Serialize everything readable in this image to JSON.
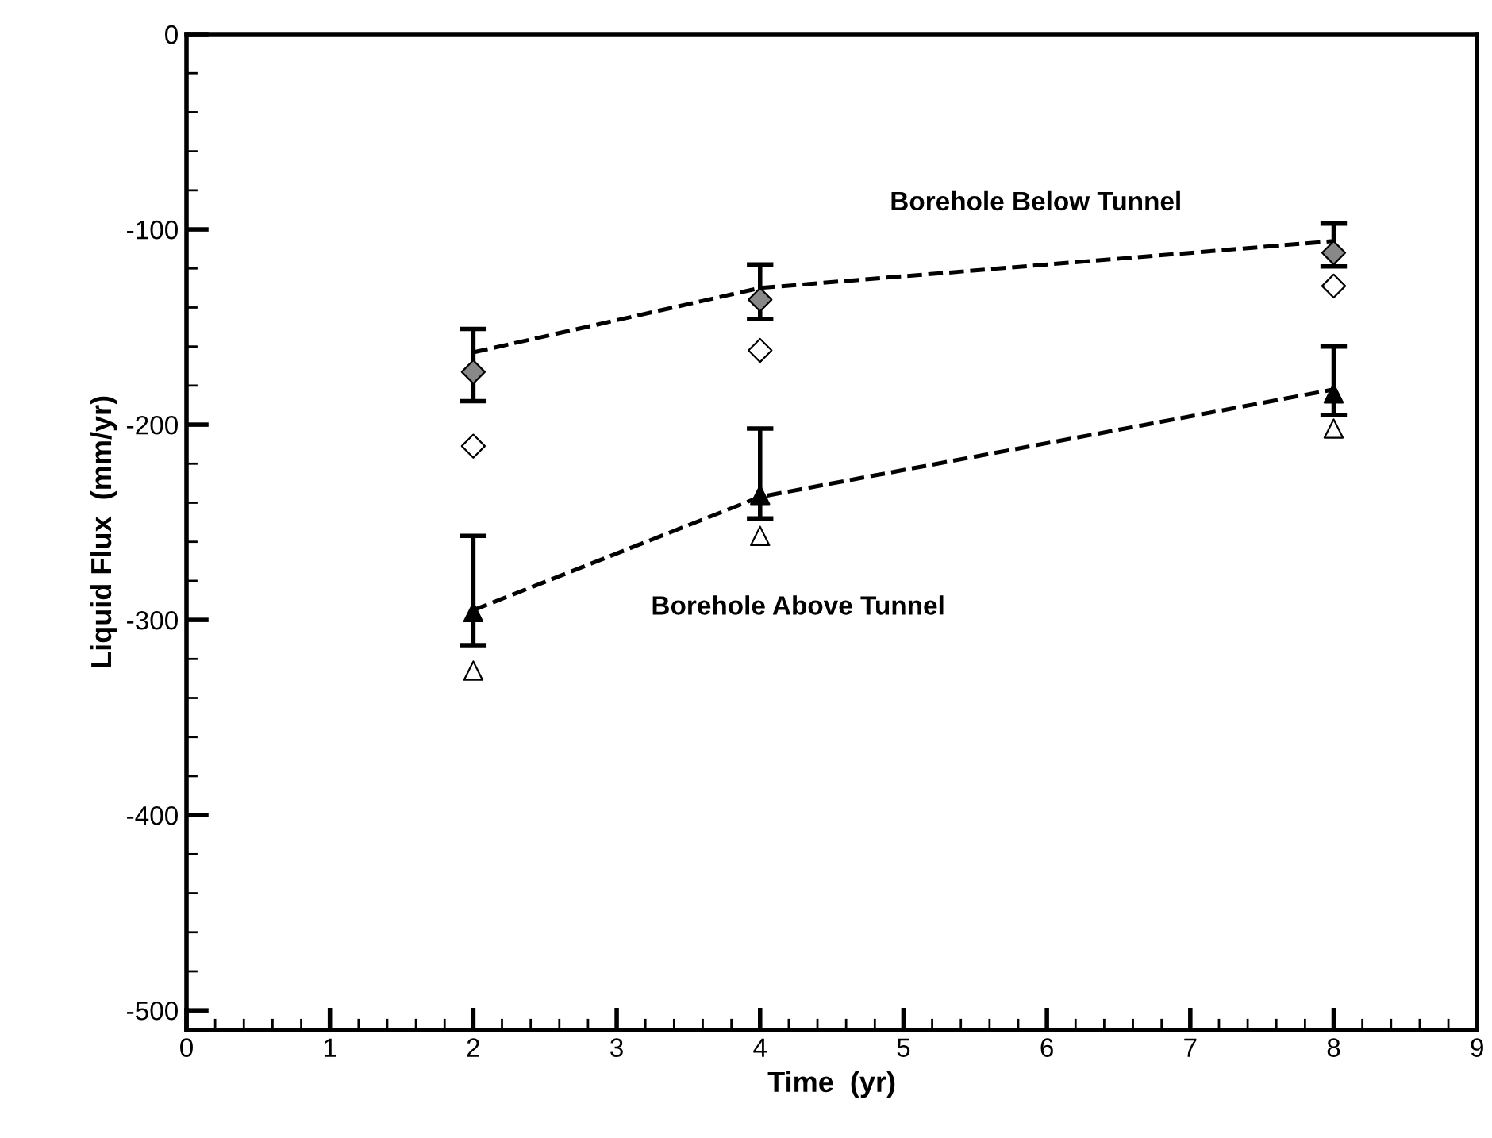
{
  "chart_data": {
    "type": "scatter",
    "xlabel": "Time  (yr)",
    "ylabel": "Liquid Flux  (mm/yr)",
    "xlim": [
      0,
      9
    ],
    "ylim": [
      -510,
      0
    ],
    "xticks": [
      0,
      1,
      2,
      3,
      4,
      5,
      6,
      7,
      8,
      9
    ],
    "yticks": [
      0,
      -100,
      -200,
      -300,
      -400,
      -500
    ],
    "grid": false,
    "legend": false,
    "series": [
      {
        "type": "line",
        "x": [
          2,
          4,
          8
        ],
        "values": [
          -163,
          -130,
          -106
        ],
        "color": "#000000",
        "line_style": "dashed",
        "marker": "none"
      },
      {
        "type": "line",
        "x": [
          2,
          4,
          8
        ],
        "values": [
          -295,
          -237,
          -182
        ],
        "color": "#000000",
        "line_style": "dashed",
        "marker": "none"
      },
      {
        "x": [
          2,
          4,
          8
        ],
        "values": [
          -173,
          -136,
          -112
        ],
        "errors": [
          [
            -188,
            -151
          ],
          [
            -146,
            -118
          ],
          [
            -119,
            -97
          ]
        ],
        "color": "#888888",
        "marker": "diamond"
      },
      {
        "x": [
          2,
          4,
          8
        ],
        "values": [
          -296,
          -236,
          -184
        ],
        "errors": [
          [
            -313,
            -257
          ],
          [
            -248,
            -202
          ],
          [
            -195,
            -160
          ]
        ],
        "color": "#000000",
        "marker": "triangle"
      },
      {
        "x": [
          2,
          4,
          8
        ],
        "values": [
          -211,
          -162,
          -129
        ],
        "color": "#ffffff",
        "marker": "diamond"
      },
      {
        "x": [
          2,
          4,
          8
        ],
        "values": [
          -326,
          -257,
          -202
        ],
        "color": "#ffffff",
        "marker": "triangle"
      }
    ],
    "annotations": [
      "Borehole Below Tunnel",
      "Borehole Above Tunnel"
    ]
  }
}
